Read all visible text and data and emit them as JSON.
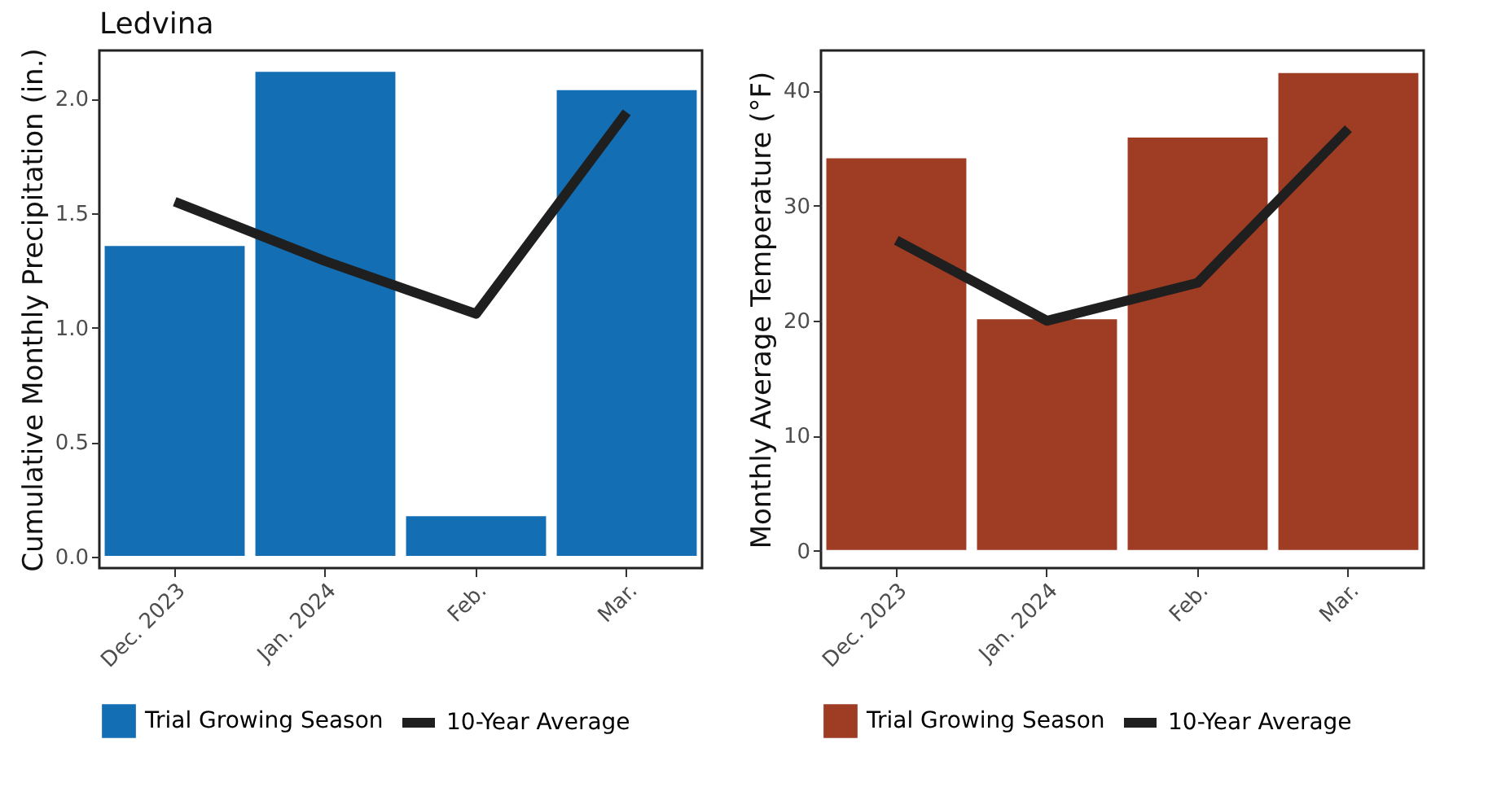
{
  "chart_data": [
    {
      "type": "bar",
      "title": "Ledvina",
      "ylabel": "Cumulative Monthly Precipitation (in.)",
      "categories": [
        "Dec. 2023",
        "Jan. 2024",
        "Feb.",
        "Mar."
      ],
      "ylim": [
        -0.05,
        2.21
      ],
      "yticks": [
        {
          "value": 0,
          "label": "0.0"
        },
        0.5,
        {
          "value": 1,
          "label": "1.0"
        },
        1.5,
        {
          "value": 2,
          "label": "2.0"
        }
      ],
      "grid": false,
      "legend": "bottom",
      "line_style": "solid",
      "series": [
        {
          "name": "Trial Growing Season",
          "color": "#146eb4",
          "values": [
            1.36,
            2.12,
            0.18,
            2.04
          ]
        },
        {
          "name": "10-Year Average",
          "type": "line",
          "color": "#1f1f1f",
          "values": [
            1.55,
            1.29,
            1.06,
            1.94
          ]
        }
      ]
    },
    {
      "type": "bar",
      "ylabel": "Monthly Average Temperature  (°F)",
      "categories": [
        "Dec. 2023",
        "Jan. 2024",
        "Feb.",
        "Mar."
      ],
      "ylim": [
        -1.5,
        43.5
      ],
      "yticks": [
        0,
        10,
        20,
        30,
        40
      ],
      "grid": false,
      "legend": "bottom",
      "line_style": "solid",
      "series": [
        {
          "name": "Trial Growing Season",
          "color": "#9e3c24",
          "values": [
            34.2,
            20.2,
            36.0,
            41.6
          ]
        },
        {
          "name": "10-Year Average",
          "type": "line",
          "color": "#1f1f1f",
          "values": [
            27.0,
            20.0,
            23.3,
            36.7
          ]
        }
      ]
    }
  ]
}
